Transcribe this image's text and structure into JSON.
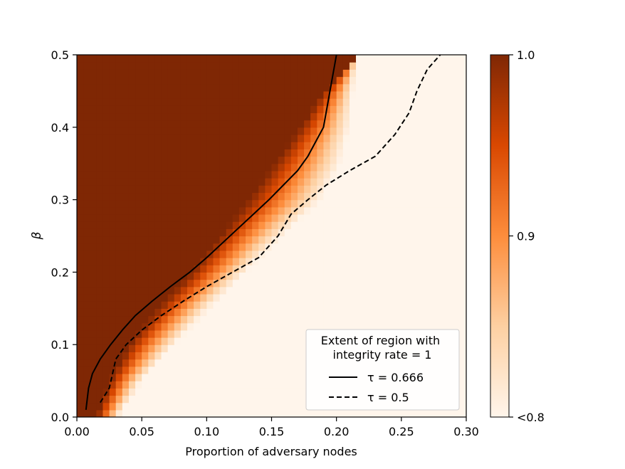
{
  "chart_data": {
    "type": "heatmap",
    "xlabel": "Proportion of adversary nodes",
    "ylabel": "β",
    "xlim": [
      0.0,
      0.3
    ],
    "ylim": [
      0.0,
      0.5
    ],
    "x_ticks": [
      0.0,
      0.05,
      0.1,
      0.15,
      0.2,
      0.25,
      0.3
    ],
    "x_tick_labels": [
      "0.00",
      "0.05",
      "0.10",
      "0.15",
      "0.20",
      "0.25",
      "0.30"
    ],
    "y_ticks": [
      0.0,
      0.1,
      0.2,
      0.3,
      0.4,
      0.5
    ],
    "y_tick_labels": [
      "0.0",
      "0.1",
      "0.2",
      "0.3",
      "0.4",
      "0.5"
    ],
    "grid": false,
    "grid_cells": [
      60,
      50
    ],
    "colorbar": {
      "range": [
        0.8,
        1.0
      ],
      "ticks": [
        0.8,
        0.9,
        1.0
      ],
      "tick_labels": [
        "<0.8",
        "0.9",
        "1.0"
      ],
      "colormap": "Oranges",
      "low_color": "#fff5eb",
      "high_color": "#7f2704"
    },
    "region_boundary_high": {
      "beta": [
        0.0,
        0.05,
        0.1,
        0.15,
        0.2,
        0.25,
        0.3,
        0.35,
        0.4,
        0.45,
        0.5
      ],
      "x": [
        0.015,
        0.025,
        0.04,
        0.062,
        0.088,
        0.11,
        0.132,
        0.152,
        0.172,
        0.19,
        0.215
      ]
    },
    "region_boundary_low": {
      "beta": [
        0.0,
        0.05,
        0.1,
        0.15,
        0.2,
        0.25,
        0.3,
        0.35,
        0.4,
        0.45,
        0.5
      ],
      "x": [
        0.032,
        0.05,
        0.075,
        0.102,
        0.13,
        0.158,
        0.188,
        0.203,
        0.21,
        0.213,
        0.215
      ]
    },
    "series": [
      {
        "name": "τ = 0.666",
        "style": "solid",
        "x": [
          0.007,
          0.009,
          0.012,
          0.018,
          0.026,
          0.035,
          0.045,
          0.058,
          0.072,
          0.087,
          0.1,
          0.112,
          0.124,
          0.136,
          0.148,
          0.159,
          0.17,
          0.178,
          0.184,
          0.19,
          0.195,
          0.2
        ],
        "y": [
          0.01,
          0.04,
          0.06,
          0.08,
          0.1,
          0.12,
          0.14,
          0.16,
          0.18,
          0.2,
          0.22,
          0.24,
          0.26,
          0.28,
          0.3,
          0.32,
          0.34,
          0.36,
          0.38,
          0.4,
          0.45,
          0.5
        ]
      },
      {
        "name": "τ = 0.5",
        "style": "dashed",
        "x": [
          0.018,
          0.025,
          0.03,
          0.038,
          0.05,
          0.065,
          0.082,
          0.1,
          0.12,
          0.14,
          0.155,
          0.165,
          0.178,
          0.192,
          0.21,
          0.23,
          0.245,
          0.256,
          0.262,
          0.27,
          0.28
        ],
        "y": [
          0.02,
          0.04,
          0.08,
          0.1,
          0.12,
          0.14,
          0.16,
          0.18,
          0.2,
          0.22,
          0.25,
          0.28,
          0.3,
          0.32,
          0.34,
          0.36,
          0.39,
          0.42,
          0.45,
          0.48,
          0.5
        ]
      }
    ],
    "legend": {
      "title": "Extent of region with\nintegrity rate = 1",
      "placement": "lower-right"
    }
  }
}
